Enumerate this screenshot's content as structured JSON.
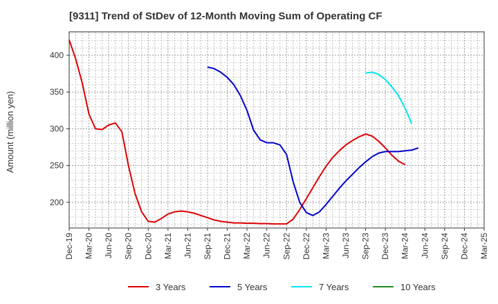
{
  "chart_data": {
    "type": "line",
    "title": "[9311]  Trend of StDev of 12-Month Moving Sum of Operating CF",
    "xlabel": "",
    "ylabel": "Amount (million yen)",
    "ylim": [
      165,
      432
    ],
    "yticks": [
      200,
      250,
      300,
      350,
      400
    ],
    "x_ticks": [
      "Dec-19",
      "Mar-20",
      "Jun-20",
      "Sep-20",
      "Dec-20",
      "Mar-21",
      "Jun-21",
      "Sep-21",
      "Dec-21",
      "Mar-22",
      "Jun-22",
      "Sep-22",
      "Dec-22",
      "Mar-23",
      "Jun-23",
      "Sep-23",
      "Dec-23",
      "Mar-24",
      "Jun-24",
      "Sep-24",
      "Dec-24",
      "Mar-25"
    ],
    "x_range_months": [
      0,
      63
    ],
    "grid": true,
    "legend_position": "bottom",
    "series": [
      {
        "name": "3 Years",
        "color": "#dd0000",
        "start_month": 0,
        "values": [
          421,
          395,
          362,
          320,
          300,
          299,
          305,
          308,
          296,
          250,
          212,
          187,
          174,
          173,
          178,
          184,
          187,
          188,
          187,
          185,
          182,
          179,
          176,
          174,
          173,
          172,
          172,
          171.5,
          171.5,
          171,
          171,
          170.5,
          170.5,
          170.5,
          177,
          190,
          205,
          220,
          235,
          249,
          261,
          270,
          278,
          284,
          289,
          293,
          290,
          283,
          274,
          264,
          256,
          251
        ]
      },
      {
        "name": "5 Years",
        "color": "#0000cc",
        "start_month": 21,
        "values": [
          384,
          382,
          377,
          370,
          360,
          345,
          325,
          298,
          285,
          281,
          281,
          278,
          265,
          228,
          200,
          186,
          182,
          187,
          197,
          208,
          219,
          229,
          238,
          247,
          255,
          262,
          267,
          269,
          269,
          269,
          270,
          271,
          274
        ]
      },
      {
        "name": "7 Years",
        "color": "#00e5ee",
        "start_month": 45,
        "values": [
          376,
          377,
          374,
          367,
          357,
          345,
          328,
          307
        ]
      },
      {
        "name": "10 Years",
        "color": "#228b22",
        "start_month": 0,
        "values": []
      }
    ]
  }
}
